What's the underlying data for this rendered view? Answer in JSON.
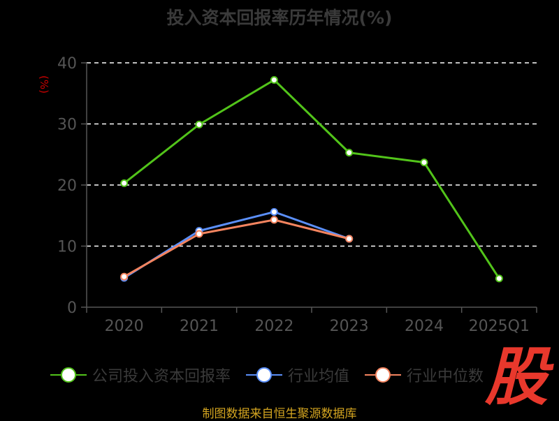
{
  "title": "投入资本回报率历年情况(%)",
  "unit_label": "(%)",
  "colors": {
    "company": "#52c41a",
    "industry_avg": "#5b8ff9",
    "industry_median": "#f4845f",
    "grid": "#ffffff",
    "axis": "#555555",
    "axis_text": "#555555",
    "logo": "#e8382c",
    "footer": "#d4a520"
  },
  "chart_data": {
    "type": "line",
    "categories": [
      "2020",
      "2021",
      "2022",
      "2023",
      "2024",
      "2025Q1"
    ],
    "yticks": [
      0,
      10,
      20,
      30,
      40
    ],
    "ylim": [
      0,
      40
    ],
    "grid": true,
    "legend_position": "bottom",
    "series": [
      {
        "key": "company",
        "name": "公司投入资本回报率",
        "values": [
          20.3,
          29.9,
          37.2,
          25.3,
          23.7,
          4.7
        ]
      },
      {
        "key": "industry_avg",
        "name": "行业均值",
        "values": [
          4.8,
          12.5,
          15.6,
          11.2,
          null,
          null
        ]
      },
      {
        "key": "industry_median",
        "name": "行业中位数",
        "values": [
          5.0,
          12.0,
          14.3,
          11.2,
          null,
          null
        ]
      }
    ]
  },
  "logo_text": "股",
  "footer": "制图数据来自恒生聚源数据库"
}
